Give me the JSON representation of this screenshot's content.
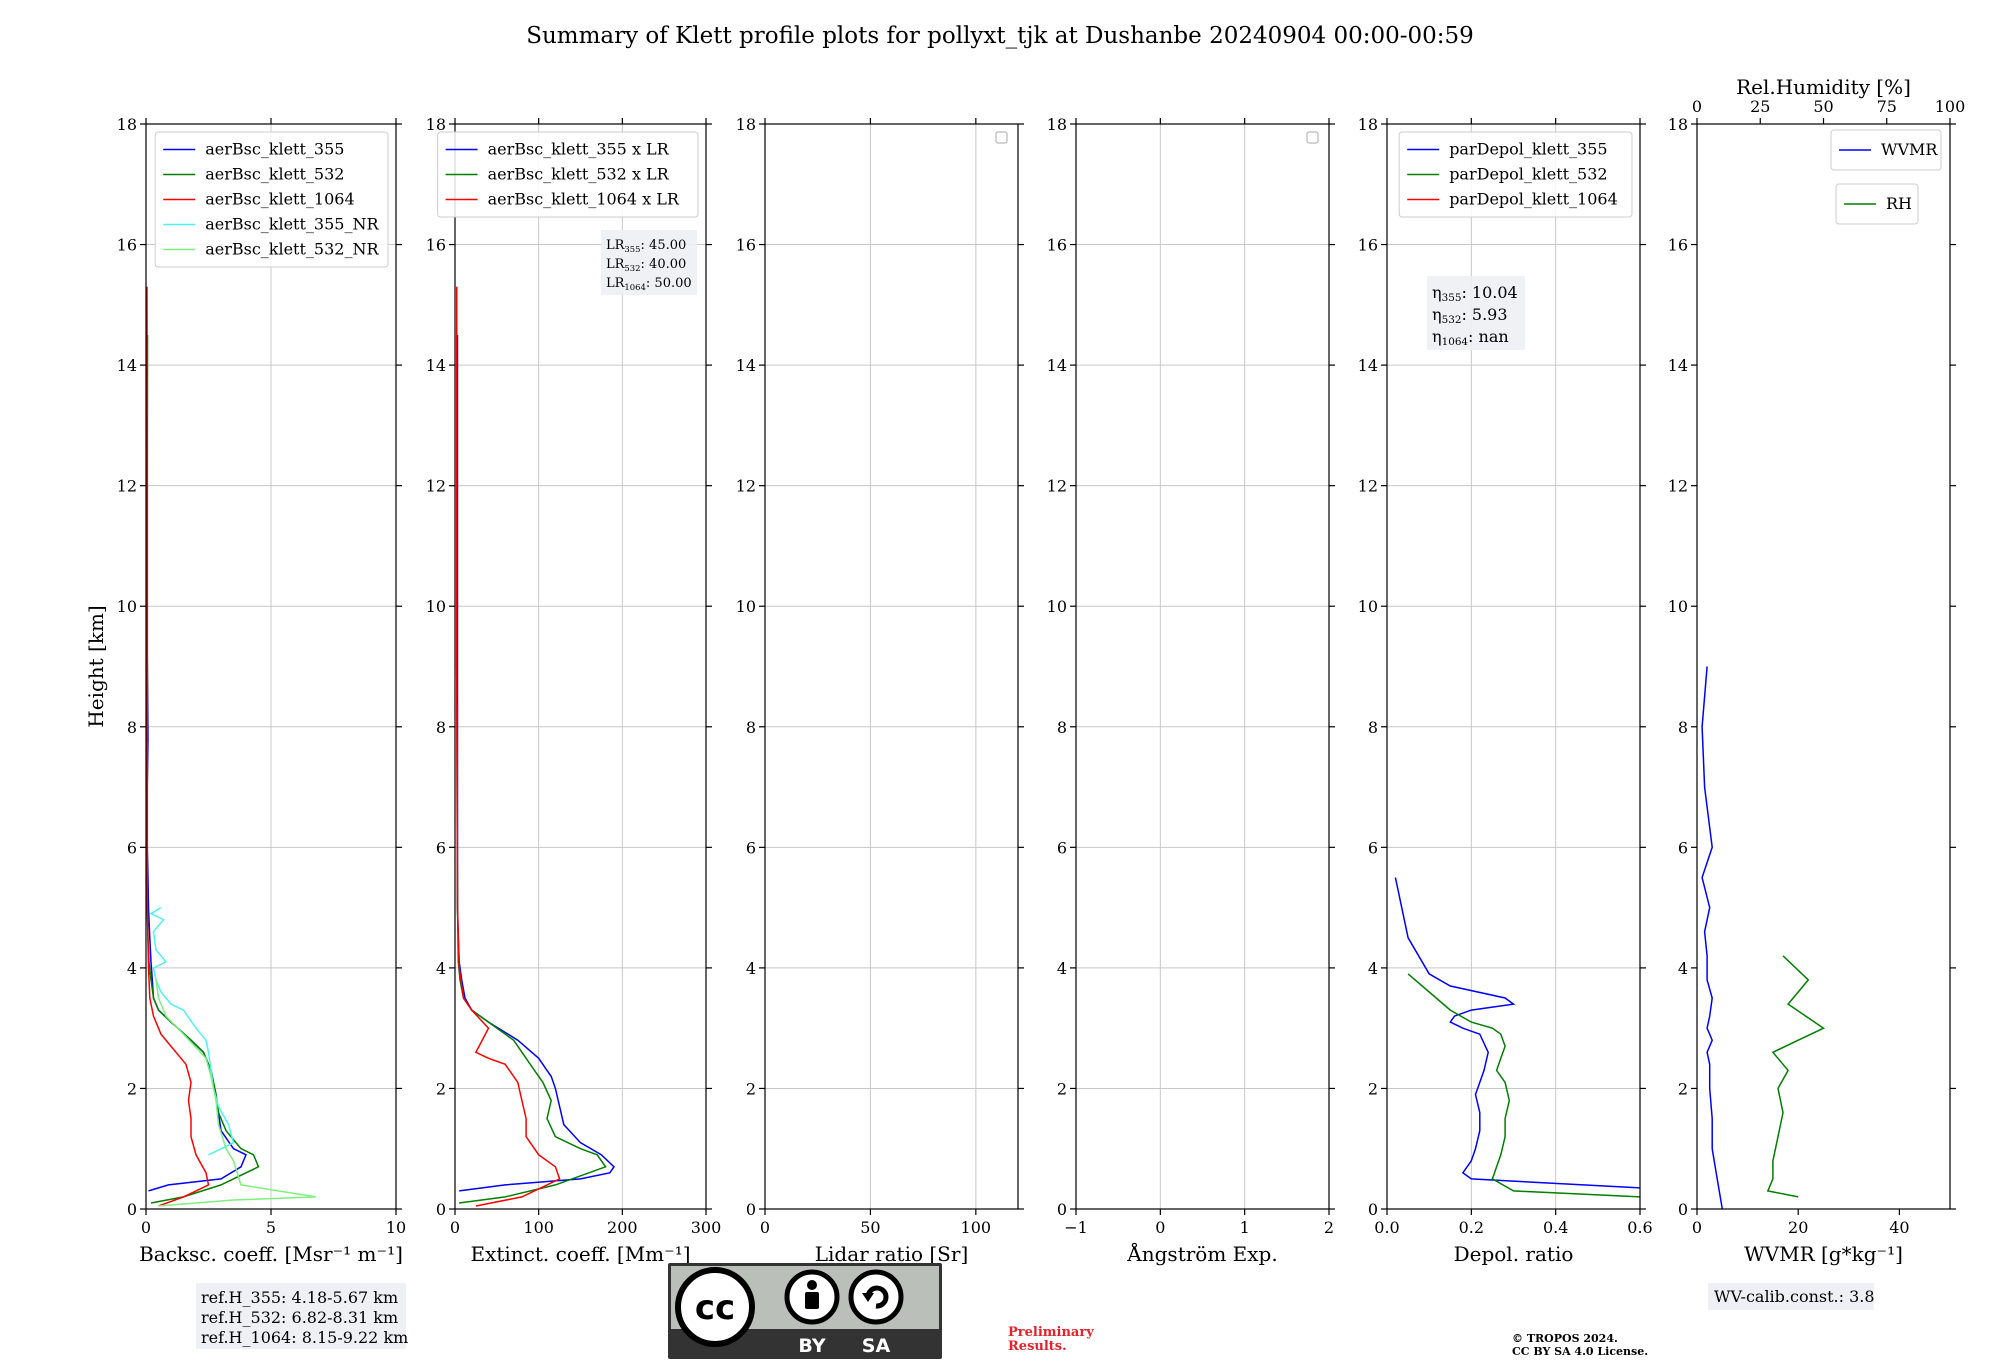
{
  "title": "Summary of Klett profile plots for pollyxt_tjk at Dushanbe 20240904 00:00-00:59",
  "footer": {
    "ref_heights": [
      "ref.H_355: 4.18-5.67 km",
      "ref.H_532: 6.82-8.31 km",
      "ref.H_1064: 8.15-9.22 km"
    ],
    "license_badge": {
      "by": "BY",
      "sa": "SA"
    },
    "preliminary": [
      "Preliminary",
      "Results."
    ],
    "copyright": [
      "© TROPOS 2024.",
      "CC BY SA 4.0 License."
    ],
    "wv_calib": "WV-calib.const.: 3.8"
  },
  "colors": {
    "blue": "#0000ff",
    "green": "#008000",
    "red": "#ff0000",
    "cyan": "#4ff2f2",
    "lightgreen": "#7ff07f",
    "grid": "#c8c8c8",
    "license_gray": "#bbbfba",
    "license_dark": "#333333",
    "preliminary": "#e8202a"
  },
  "chart_data": [
    {
      "id": "backscatter",
      "type": "line",
      "xlabel": "Backsc. coeff. [Msr⁻¹ m⁻¹]",
      "ylabel": "Height [km]",
      "xlim": [
        0,
        10
      ],
      "ylim": [
        0,
        18
      ],
      "xticks": [
        0,
        5,
        10
      ],
      "xtick_labels": [
        "0",
        "5",
        "10"
      ],
      "yticks": [
        0,
        2,
        4,
        6,
        8,
        10,
        12,
        14,
        16,
        18
      ],
      "grid": true,
      "legend_position": "top-right",
      "series": [
        {
          "name": "aerBsc_klett_355",
          "color": "#0000ff",
          "x": [
            0.1,
            0.9,
            3.0,
            3.8,
            4.0,
            3.5,
            3.0,
            2.9,
            2.8,
            2.7,
            2.6,
            2.5,
            2.3,
            1.8,
            1.0,
            0.5,
            0.3,
            0.25,
            0.2,
            0.15,
            0.1,
            0.08,
            0.05,
            0.05,
            0.08,
            0.05,
            0.05,
            0.05
          ],
          "y": [
            0.3,
            0.4,
            0.5,
            0.7,
            0.9,
            1.0,
            1.3,
            1.6,
            1.9,
            2.1,
            2.3,
            2.4,
            2.6,
            2.8,
            3.1,
            3.3,
            3.5,
            3.8,
            4.1,
            4.5,
            5.0,
            5.5,
            6.0,
            7.0,
            7.8,
            9.2,
            12.0,
            14.5
          ]
        },
        {
          "name": "aerBsc_klett_532",
          "color": "#008000",
          "x": [
            0.2,
            1.5,
            3.0,
            4.5,
            4.3,
            3.8,
            3.2,
            2.9,
            2.8,
            2.7,
            2.6,
            2.5,
            2.3,
            1.8,
            1.0,
            0.5,
            0.3,
            0.2,
            0.12,
            0.08,
            0.05,
            0.04,
            0.05,
            0.05,
            0.06
          ],
          "y": [
            0.1,
            0.2,
            0.4,
            0.7,
            0.9,
            1.0,
            1.3,
            1.6,
            1.9,
            2.1,
            2.3,
            2.4,
            2.6,
            2.8,
            3.1,
            3.3,
            3.5,
            3.8,
            4.1,
            4.5,
            5.0,
            6.0,
            8.0,
            12.0,
            14.5
          ]
        },
        {
          "name": "aerBsc_klett_1064",
          "color": "#ff0000",
          "x": [
            0.5,
            1.5,
            2.5,
            2.4,
            2.0,
            1.8,
            1.8,
            1.7,
            1.8,
            1.6,
            1.2,
            0.6,
            0.3,
            0.15,
            0.1,
            0.05,
            0.05,
            0.05,
            0.04
          ],
          "y": [
            0.05,
            0.2,
            0.4,
            0.6,
            0.9,
            1.2,
            1.5,
            1.8,
            2.1,
            2.4,
            2.6,
            2.9,
            3.2,
            3.5,
            4.0,
            5.0,
            8.0,
            12.0,
            15.3
          ]
        },
        {
          "name": "aerBsc_klett_355_NR",
          "color": "#4ff2f2",
          "x": [
            2.5,
            3.5,
            3.3,
            2.9,
            2.7,
            2.6,
            2.5,
            2.4,
            2.0,
            1.5,
            1.0,
            0.6,
            0.4,
            0.3,
            0.8,
            0.4,
            0.3,
            0.7,
            0.2,
            0.6
          ],
          "y": [
            0.9,
            1.1,
            1.4,
            1.7,
            2.0,
            2.3,
            2.6,
            2.8,
            3.0,
            3.3,
            3.4,
            3.6,
            3.8,
            4.0,
            4.1,
            4.3,
            4.6,
            4.8,
            4.9,
            5.0
          ]
        },
        {
          "name": "aerBsc_klett_532_NR",
          "color": "#7ff07f",
          "x": [
            0.5,
            3.5,
            6.8,
            3.8,
            3.5,
            3.2,
            2.9,
            2.8,
            2.6,
            2.4,
            1.5,
            0.8,
            0.5,
            0.4
          ],
          "y": [
            0.05,
            0.15,
            0.2,
            0.4,
            0.8,
            1.0,
            1.4,
            1.8,
            2.2,
            2.5,
            2.9,
            3.2,
            3.5,
            3.8
          ]
        }
      ],
      "annotation": null
    },
    {
      "id": "extinction",
      "type": "line",
      "xlabel": "Extinct. coeff. [Mm⁻¹]",
      "ylabel": "",
      "xlim": [
        0,
        300
      ],
      "ylim": [
        0,
        18
      ],
      "xticks": [
        0,
        100,
        200,
        300
      ],
      "xtick_labels": [
        "0",
        "100",
        "200",
        "300"
      ],
      "yticks": [
        0,
        2,
        4,
        6,
        8,
        10,
        12,
        14,
        16,
        18
      ],
      "grid": true,
      "legend_position": "top-right",
      "series": [
        {
          "name": "aerBsc_klett_355 x LR",
          "color": "#0000ff",
          "x": [
            5,
            60,
            150,
            185,
            190,
            175,
            150,
            130,
            125,
            120,
            115,
            110,
            100,
            75,
            40,
            20,
            12,
            8,
            5,
            4,
            3,
            3,
            3,
            3
          ],
          "y": [
            0.3,
            0.4,
            0.5,
            0.6,
            0.7,
            0.9,
            1.1,
            1.4,
            1.7,
            2.0,
            2.2,
            2.3,
            2.5,
            2.8,
            3.1,
            3.3,
            3.5,
            3.8,
            4.1,
            4.5,
            5.0,
            6.0,
            9.0,
            14.5
          ]
        },
        {
          "name": "aerBsc_klett_532 x LR",
          "color": "#008000",
          "x": [
            5,
            60,
            120,
            180,
            170,
            150,
            120,
            110,
            115,
            105,
            95,
            85,
            70,
            40,
            20,
            10,
            6,
            4,
            3,
            2,
            2
          ],
          "y": [
            0.1,
            0.2,
            0.4,
            0.7,
            0.9,
            1.0,
            1.2,
            1.5,
            1.8,
            2.1,
            2.3,
            2.5,
            2.8,
            3.1,
            3.3,
            3.5,
            3.8,
            4.1,
            5.0,
            9.0,
            14.5
          ]
        },
        {
          "name": "aerBsc_klett_1064 x LR",
          "color": "#ff0000",
          "x": [
            25,
            80,
            125,
            120,
            100,
            85,
            85,
            80,
            75,
            60,
            40,
            25,
            40,
            20,
            10,
            5,
            3,
            2,
            2
          ],
          "y": [
            0.05,
            0.2,
            0.5,
            0.7,
            0.9,
            1.2,
            1.5,
            1.8,
            2.1,
            2.4,
            2.5,
            2.6,
            3.0,
            3.3,
            3.5,
            4.0,
            5.0,
            9.0,
            15.3
          ]
        }
      ],
      "annotation": {
        "lines": [
          {
            "label": "LR",
            "sub": "355",
            "value": ": 45.00"
          },
          {
            "label": "LR",
            "sub": "532",
            "value": ": 40.00"
          },
          {
            "label": "LR",
            "sub": "1064",
            "value": ": 50.00"
          }
        ]
      }
    },
    {
      "id": "lidar_ratio",
      "type": "line",
      "xlabel": "Lidar ratio [Sr]",
      "ylabel": "",
      "xlim": [
        0,
        120
      ],
      "ylim": [
        0,
        18
      ],
      "xticks": [
        0,
        50,
        100
      ],
      "xtick_labels": [
        "0",
        "50",
        "100"
      ],
      "yticks": [
        0,
        2,
        4,
        6,
        8,
        10,
        12,
        14,
        16,
        18
      ],
      "grid": true,
      "legend_position": "top-right",
      "series": [],
      "annotation": null
    },
    {
      "id": "angstrom",
      "type": "line",
      "xlabel": "Ångström Exp.",
      "ylabel": "",
      "xlim": [
        -1,
        2
      ],
      "ylim": [
        0,
        18
      ],
      "xticks": [
        -1,
        0,
        1,
        2
      ],
      "xtick_labels": [
        "−1",
        "0",
        "1",
        "2"
      ],
      "yticks": [
        0,
        2,
        4,
        6,
        8,
        10,
        12,
        14,
        16,
        18
      ],
      "grid": true,
      "legend_position": "top-right",
      "series": [],
      "annotation": null
    },
    {
      "id": "depol",
      "type": "line",
      "xlabel": "Depol. ratio",
      "ylabel": "",
      "xlim": [
        0,
        0.6
      ],
      "ylim": [
        0,
        18
      ],
      "xticks": [
        0,
        0.2,
        0.4,
        0.6
      ],
      "xtick_labels": [
        "0.0",
        "0.2",
        "0.4",
        "0.6"
      ],
      "yticks": [
        0,
        2,
        4,
        6,
        8,
        10,
        12,
        14,
        16,
        18
      ],
      "grid": true,
      "legend_position": "top-right",
      "series": [
        {
          "name": "parDepol_klett_355",
          "color": "#0000ff",
          "x": [
            0.6,
            0.2,
            0.18,
            0.2,
            0.21,
            0.22,
            0.22,
            0.21,
            0.22,
            0.23,
            0.24,
            0.22,
            0.18,
            0.15,
            0.16,
            0.2,
            0.25,
            0.3,
            0.28,
            0.15,
            0.1,
            0.05,
            0.02
          ],
          "y": [
            0.35,
            0.5,
            0.6,
            0.8,
            1.0,
            1.3,
            1.6,
            1.9,
            2.1,
            2.3,
            2.6,
            2.9,
            3.0,
            3.1,
            3.2,
            3.3,
            3.35,
            3.4,
            3.5,
            3.7,
            3.9,
            4.5,
            5.5
          ]
        },
        {
          "name": "parDepol_klett_532",
          "color": "#008000",
          "x": [
            0.6,
            0.3,
            0.25,
            0.26,
            0.27,
            0.28,
            0.28,
            0.29,
            0.28,
            0.26,
            0.27,
            0.28,
            0.27,
            0.25,
            0.2,
            0.15,
            0.1,
            0.05
          ],
          "y": [
            0.2,
            0.3,
            0.5,
            0.7,
            0.9,
            1.2,
            1.5,
            1.8,
            2.1,
            2.3,
            2.5,
            2.7,
            2.9,
            3.0,
            3.1,
            3.3,
            3.6,
            3.9
          ]
        }
      ],
      "legend_extra": [
        {
          "name": "parDepol_klett_1064",
          "color": "#ff0000"
        }
      ],
      "annotation": {
        "lines": [
          {
            "label": "η",
            "sub": "355",
            "value": ": 10.04"
          },
          {
            "label": "η",
            "sub": "532",
            "value": ": 5.93"
          },
          {
            "label": "η",
            "sub": "1064",
            "value": ": nan"
          }
        ]
      }
    },
    {
      "id": "wv",
      "type": "line",
      "xlabel": "WVMR [g*kg⁻¹]",
      "ylabel": "",
      "xlim": [
        0,
        50
      ],
      "ylim": [
        0,
        18
      ],
      "xticks": [
        0,
        20,
        40
      ],
      "xtick_labels": [
        "0",
        "20",
        "40"
      ],
      "yticks": [
        0,
        2,
        4,
        6,
        8,
        10,
        12,
        14,
        16,
        18
      ],
      "top_axis": {
        "label": "Rel.Humidity [%]",
        "lim": [
          0,
          100
        ],
        "ticks": [
          0,
          25,
          50,
          75,
          100
        ],
        "tick_labels": [
          "0",
          "25",
          "50",
          "75",
          "100"
        ]
      },
      "grid": false,
      "legend_position": "top-right",
      "series": [
        {
          "name": "WVMR",
          "color": "#0000ff",
          "x": [
            5,
            4,
            3,
            3,
            2.5,
            2.5,
            2,
            3,
            2,
            2.5,
            3,
            2,
            2,
            1.5,
            2.5,
            1,
            3,
            1.5,
            1,
            2
          ],
          "y": [
            0,
            0.5,
            1.0,
            1.5,
            2.0,
            2.4,
            2.6,
            2.8,
            3.0,
            3.2,
            3.5,
            3.8,
            4.2,
            4.6,
            5.0,
            5.5,
            6.0,
            7.0,
            8.0,
            9.0
          ]
        },
        {
          "name": "RH",
          "color": "#008000",
          "x": [
            20,
            14,
            15,
            15,
            16,
            17,
            16,
            18,
            15,
            20,
            25,
            18,
            22,
            17
          ],
          "y": [
            0.2,
            0.3,
            0.5,
            0.8,
            1.2,
            1.6,
            2.0,
            2.3,
            2.6,
            2.8,
            3.0,
            3.4,
            3.8,
            4.2
          ]
        }
      ],
      "annotation": null
    }
  ]
}
